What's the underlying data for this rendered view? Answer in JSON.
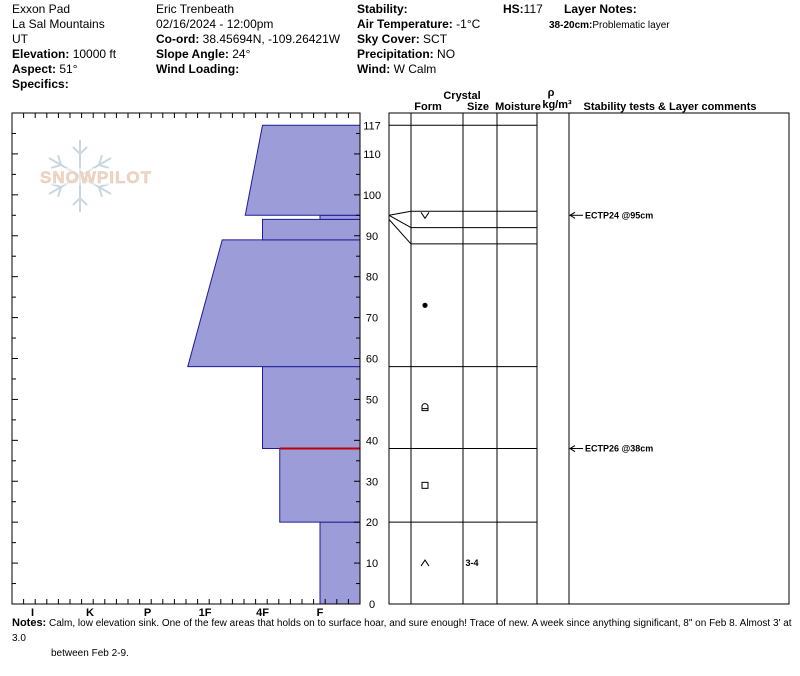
{
  "header": {
    "location_name": "Exxon Pad",
    "range": "La Sal Mountains",
    "state": "UT",
    "elevation_label": "Elevation:",
    "elevation": "10000 ft",
    "aspect_label": "Aspect:",
    "aspect": "51°",
    "specifics_label": "Specifics:",
    "observer": "Eric Trenbeath",
    "datetime": "02/16/2024 - 12:00pm",
    "coord_label": "Co-ord:",
    "coord": "38.45694N, -109.26421W",
    "slope_label": "Slope Angle:",
    "slope": "24°",
    "wind_loading_label": "Wind Loading:",
    "stability_label": "Stability:",
    "air_temp_label": "Air Temperature:",
    "air_temp": "-1°C",
    "sky_label": "Sky Cover:",
    "sky": "SCT",
    "precip_label": "Precipitation:",
    "precip": "NO",
    "wind_label": "Wind:",
    "wind": "W Calm",
    "hs_label": "HS:",
    "hs": "117",
    "layer_notes_label": "Layer Notes:",
    "layer_note_range": "38-20cm:",
    "layer_note_text": "Problematic layer"
  },
  "logo_text": "SNOWPILOT",
  "columns": {
    "crystal": "Crystal",
    "form": "Form",
    "size": "Size",
    "moisture": "Moisture",
    "rho": "ρ",
    "density_unit": "kg/m³",
    "stability": "Stability tests & Layer comments"
  },
  "notes": {
    "label": "Notes:",
    "line1": "Calm, low elevation sink. One of the few areas that holds on to surface hoar, and sure enough! Trace of new. A week since anything significant, 8\" on Feb 8. Almost 3' at 3.0",
    "line2": "between Feb 2-9."
  },
  "chart_data": {
    "type": "snow-profile",
    "y_axis": {
      "min": 0,
      "max": 120,
      "unit": "cm",
      "ticks": [
        0,
        10,
        20,
        30,
        40,
        50,
        60,
        70,
        80,
        90,
        100,
        110,
        117
      ]
    },
    "hardness_axis": {
      "labels": [
        "I",
        "K",
        "P",
        "1F",
        "4F",
        "F"
      ],
      "positions": [
        5,
        4,
        3,
        2,
        1,
        0
      ]
    },
    "hardness_layers": [
      {
        "bottom": 0,
        "top": 20,
        "h_bottom": 0,
        "h_top": 0
      },
      {
        "bottom": 20,
        "top": 38,
        "h_bottom": 0.7,
        "h_top": 0.7
      },
      {
        "bottom": 38,
        "top": 58,
        "h_bottom": 1,
        "h_top": 1
      },
      {
        "bottom": 58,
        "top": 89,
        "h_bottom": 2.3,
        "h_top": 1.7
      },
      {
        "bottom": 89,
        "top": 94,
        "h_bottom": 1,
        "h_top": 1
      },
      {
        "bottom": 94,
        "top": 95,
        "h_bottom": 0,
        "h_top": 0
      },
      {
        "bottom": 95,
        "top": 117,
        "h_bottom": 1.3,
        "h_top": 1
      }
    ],
    "red_line_depth": 38,
    "layer_boundaries": [
      117,
      96,
      92,
      88,
      58,
      38,
      20
    ],
    "crystals": [
      {
        "depth": 95,
        "form": "surface-hoar-v"
      },
      {
        "depth": 73,
        "form": "round-dot"
      },
      {
        "depth": 48,
        "form": "mixed-rounded-faceted"
      },
      {
        "depth": 29,
        "form": "faceted-square"
      },
      {
        "depth": 10,
        "form": "depth-hoar-caret",
        "size": "3-4"
      }
    ],
    "stability_tests": [
      {
        "depth": 95,
        "label": "ECTP24 @95cm"
      },
      {
        "depth": 38,
        "label": "ECTP26 @38cm"
      }
    ]
  }
}
